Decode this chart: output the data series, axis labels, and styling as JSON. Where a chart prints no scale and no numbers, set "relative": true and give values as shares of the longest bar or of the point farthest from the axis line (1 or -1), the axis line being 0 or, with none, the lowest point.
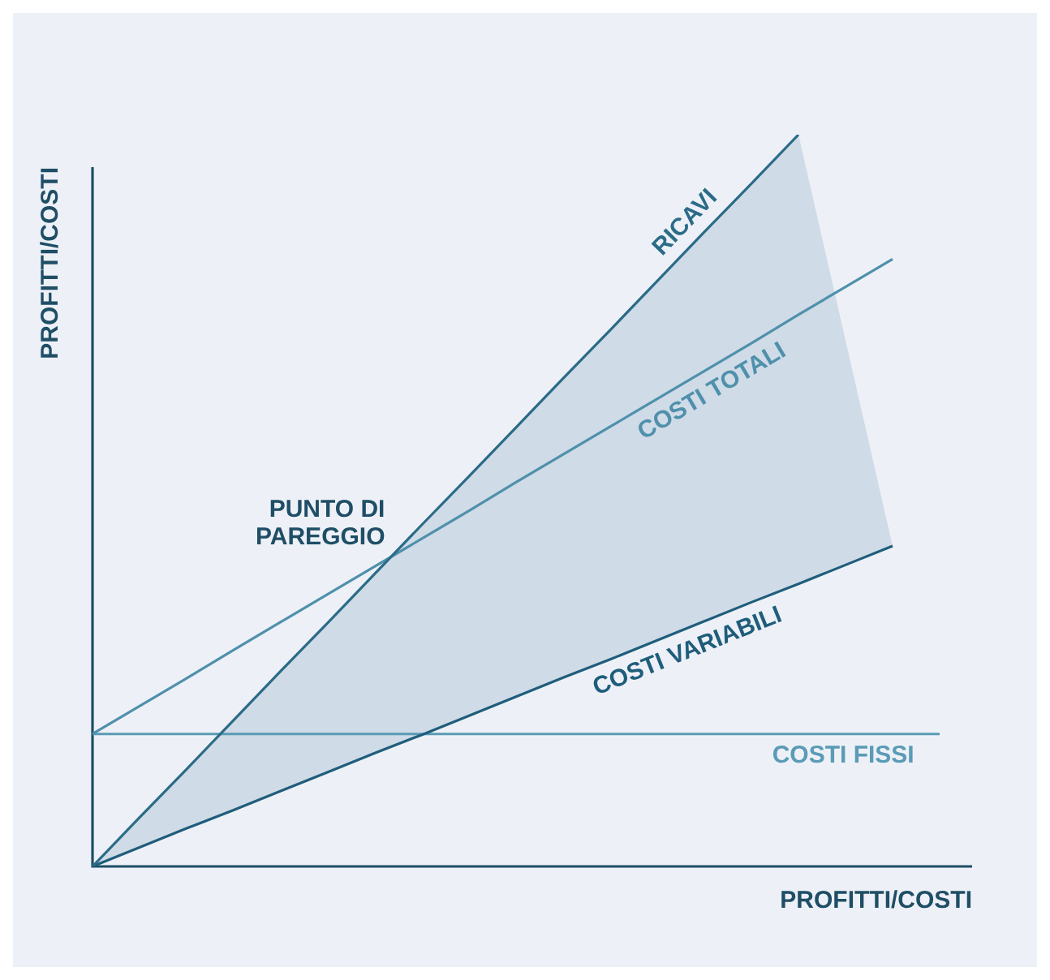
{
  "chart_data": {
    "type": "line",
    "relative": true,
    "xlabel": "PROFITTI/COSTI",
    "ylabel": "PROFITTI/COSTI",
    "legend": false,
    "marker": "none",
    "line_style": "solid",
    "categories": [
      null,
      null,
      null,
      null,
      null,
      null,
      null,
      null,
      null,
      null,
      null,
      null,
      null,
      null,
      null,
      null,
      null,
      null,
      null
    ],
    "series": [
      {
        "name": "RICAVI",
        "color": "#2b6b88",
        "values": [
          0,
          0.067,
          0.133,
          0.2,
          0.267,
          0.333,
          0.4,
          0.467,
          0.533,
          0.6,
          0.667,
          0.733,
          0.8,
          0.867,
          0.933,
          1,
          null,
          null,
          null
        ]
      },
      {
        "name": "COSTI TOTALI",
        "color": "#4f90ac",
        "values": [
          0.181,
          0.219,
          0.257,
          0.296,
          0.334,
          0.372,
          0.41,
          0.448,
          0.486,
          0.525,
          0.563,
          0.601,
          0.639,
          0.677,
          0.715,
          0.754,
          0.792,
          0.83,
          null
        ]
      },
      {
        "name": "COSTI VARIABILI",
        "color": "#1f5d7b",
        "values": [
          0,
          0.026,
          0.052,
          0.077,
          0.103,
          0.129,
          0.155,
          0.18,
          0.206,
          0.232,
          0.258,
          0.283,
          0.309,
          0.335,
          0.361,
          0.386,
          0.412,
          0.438,
          null
        ],
        "lower": [
          0,
          0.026,
          0.052,
          0.077,
          0.103,
          0.129,
          0.155,
          0.18,
          0.206,
          0.232,
          0.258,
          0.283,
          0.309,
          0.335,
          0.361,
          0.386,
          0.412,
          0.438,
          null
        ],
        "upper": [
          0,
          0.067,
          0.133,
          0.2,
          0.267,
          0.333,
          0.4,
          0.467,
          0.533,
          0.6,
          0.667,
          0.733,
          0.8,
          0.867,
          0.933,
          1,
          0.719,
          0.438,
          null
        ]
      },
      {
        "name": "COSTI FISSI",
        "color": "#5a9bb6",
        "values": [
          0.181,
          0.181,
          0.181,
          0.181,
          0.181,
          0.181,
          0.181,
          0.181,
          0.181,
          0.181,
          0.181,
          0.181,
          0.181,
          0.181,
          0.181,
          0.181,
          0.181,
          0.181,
          0.181
        ]
      }
    ],
    "annotations": [
      "PUNTO DI\nPAREGGIO"
    ]
  }
}
